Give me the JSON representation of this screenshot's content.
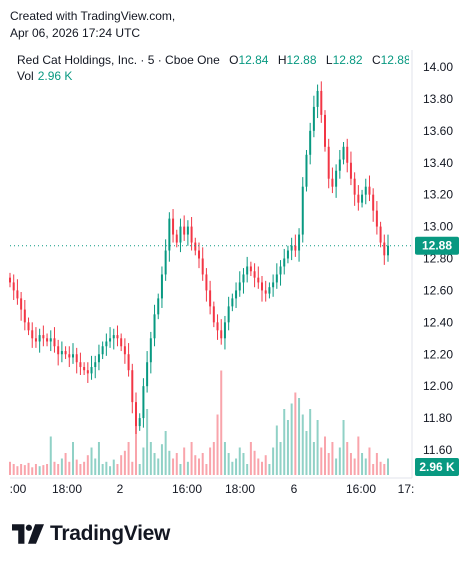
{
  "header": {
    "line1": "Created with TradingView.com,",
    "line2": "Apr 06, 2026 17:24 UTC"
  },
  "legend": {
    "symbol": "Red Cat Holdings, Inc. · 5 · Cboe One",
    "open_label": "O",
    "open": "12.84",
    "high_label": "H",
    "high": "12.88",
    "low_label": "L",
    "low": "12.82",
    "close_label": "C",
    "close": "12.88…",
    "vol_label": "Vol",
    "vol": "2.96 K"
  },
  "price_tag": "12.88",
  "volume_tag": "2.96 K",
  "brand": {
    "name": "TradingView"
  },
  "colors": {
    "up": "#089981",
    "down": "#f23645",
    "tag": "#089981",
    "grid": "#e0e3eb"
  },
  "chart_data": {
    "type": "candlestick",
    "y_ticks": [
      "14.00",
      "13.80",
      "13.60",
      "13.40",
      "13.20",
      "13.00",
      "12.80",
      "12.60",
      "12.40",
      "12.20",
      "12.00",
      "11.80",
      "11.60"
    ],
    "ylim": [
      11.5,
      14.1
    ],
    "x_ticks": [
      ":00",
      "18:00",
      "2",
      "16:00",
      "18:00",
      "6",
      "16:00",
      "17:"
    ],
    "last_price": 12.88,
    "closes": [
      12.65,
      12.6,
      12.55,
      12.48,
      12.4,
      12.35,
      12.3,
      12.28,
      12.32,
      12.3,
      12.28,
      12.3,
      12.25,
      12.2,
      12.22,
      12.2,
      12.18,
      12.2,
      12.15,
      12.12,
      12.1,
      12.08,
      12.12,
      12.15,
      12.2,
      12.25,
      12.28,
      12.3,
      12.32,
      12.3,
      12.25,
      12.2,
      12.1,
      11.9,
      11.75,
      11.8,
      12.0,
      12.15,
      12.3,
      12.45,
      12.55,
      12.7,
      12.85,
      13.05,
      12.95,
      12.9,
      13.0,
      12.95,
      13.0,
      12.9,
      12.85,
      12.8,
      12.7,
      12.6,
      12.5,
      12.4,
      12.35,
      12.3,
      12.4,
      12.5,
      12.55,
      12.6,
      12.65,
      12.7,
      12.75,
      12.72,
      12.68,
      12.65,
      12.6,
      12.58,
      12.62,
      12.65,
      12.7,
      12.75,
      12.8,
      12.85,
      12.88,
      12.85,
      12.95,
      13.25,
      13.45,
      13.6,
      13.75,
      13.85,
      13.7,
      13.5,
      13.3,
      13.25,
      13.35,
      13.42,
      13.5,
      13.4,
      13.3,
      13.2,
      13.15,
      13.2,
      13.25,
      13.2,
      13.1,
      13.0,
      12.9,
      12.82,
      12.88
    ],
    "volumes": [
      0.12,
      0.1,
      0.08,
      0.1,
      0.09,
      0.11,
      0.07,
      0.1,
      0.08,
      0.09,
      0.1,
      0.35,
      0.12,
      0.1,
      0.15,
      0.2,
      0.12,
      0.3,
      0.14,
      0.1,
      0.12,
      0.18,
      0.25,
      0.15,
      0.3,
      0.1,
      0.12,
      0.08,
      0.14,
      0.1,
      0.18,
      0.22,
      0.3,
      0.12,
      0.45,
      0.1,
      0.25,
      0.6,
      0.3,
      0.2,
      0.15,
      0.28,
      0.4,
      0.22,
      0.15,
      0.2,
      0.1,
      0.25,
      0.12,
      0.3,
      0.18,
      0.15,
      0.2,
      0.1,
      0.25,
      0.3,
      0.55,
      0.95,
      0.3,
      0.2,
      0.12,
      0.15,
      0.25,
      0.2,
      0.1,
      0.3,
      0.22,
      0.15,
      0.12,
      0.18,
      0.1,
      0.25,
      0.45,
      0.3,
      0.6,
      0.5,
      0.65,
      0.75,
      0.7,
      0.55,
      0.4,
      0.6,
      0.3,
      0.5,
      0.25,
      0.35,
      0.2,
      0.3,
      0.15,
      0.25,
      0.5,
      0.3,
      0.2,
      0.15,
      0.35,
      0.2,
      0.15,
      0.25,
      0.1,
      0.2,
      0.12,
      0.1,
      0.15
    ],
    "volume_max": 1.0
  }
}
